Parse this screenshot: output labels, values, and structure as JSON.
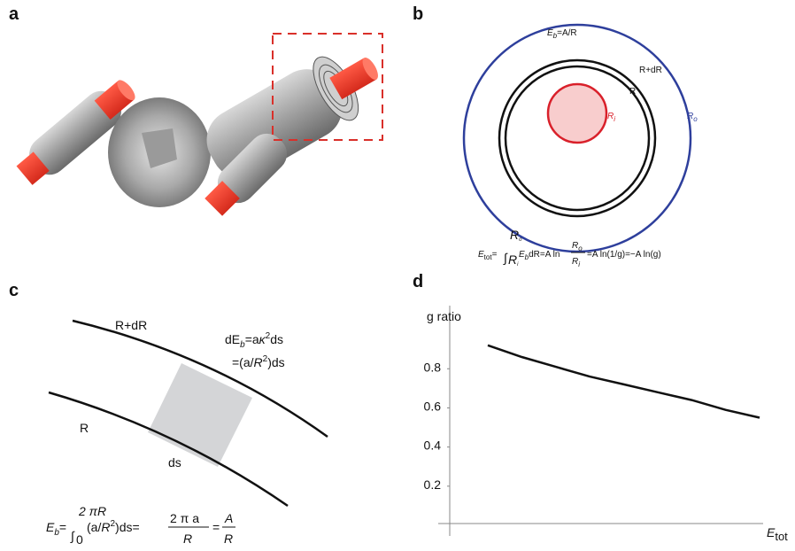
{
  "panel_a": {
    "label": "a"
  },
  "panel_b": {
    "label": "b",
    "energy_density": {
      "symbol": "E",
      "sub": "b",
      "rest": "=A/R"
    },
    "outer_radius_label": "R+dR",
    "inner_radius_label": "R",
    "axon_radius": {
      "symbol": "R",
      "sub": "i"
    },
    "fiber_radius": {
      "symbol": "R",
      "sub": "o"
    },
    "formula": {
      "lhs": "E",
      "lhs_sub": "tot",
      "eq": "=",
      "integral": "∫",
      "upper": "R",
      "upper_sub": "o",
      "lower": "R",
      "lower_sub": "i",
      "integrand": "E",
      "integrand_sub": "b",
      "integrand_rest": "dR=A ln",
      "num": "R",
      "num_sub": "o",
      "den": "R",
      "den_sub": "i",
      "tail": "=A ln(1/g)=−A ln(g)"
    }
  },
  "panel_c": {
    "label": "c",
    "outer_curve_label": "R+dR",
    "inner_curve_label": "R",
    "arc_label": "ds",
    "energy_line1": {
      "a": "dE",
      "b": "b",
      "c": "=a",
      "d": "κ",
      "e": "2",
      "f": "ds"
    },
    "energy_line2": {
      "a": "=(a/",
      "b": "R",
      "c": "2",
      "d": ")ds"
    },
    "formula": {
      "lhs": "E",
      "lhs_sub": "b",
      "eq": "=",
      "integral": "∫",
      "upper": "2 πR",
      "lower": "0",
      "p1": "(a/",
      "p2": "R",
      "p3": "2",
      "p4": ")ds=",
      "num1": "2 π a",
      "den1": "R",
      "eq2": "=",
      "num2": "A",
      "den2": "R"
    }
  },
  "panel_d": {
    "label": "d",
    "chart_data": {
      "type": "line",
      "y_label": "g ratio",
      "x_label": {
        "symbol": "E",
        "sub": "tot"
      },
      "values": [
        0.92,
        0.86,
        0.81,
        0.76,
        0.72,
        0.68,
        0.64,
        0.59,
        0.55
      ],
      "color": "#111111",
      "ylim": [
        0,
        1.1
      ],
      "yticks": [
        0.2,
        0.4,
        0.6,
        0.8
      ]
    }
  }
}
